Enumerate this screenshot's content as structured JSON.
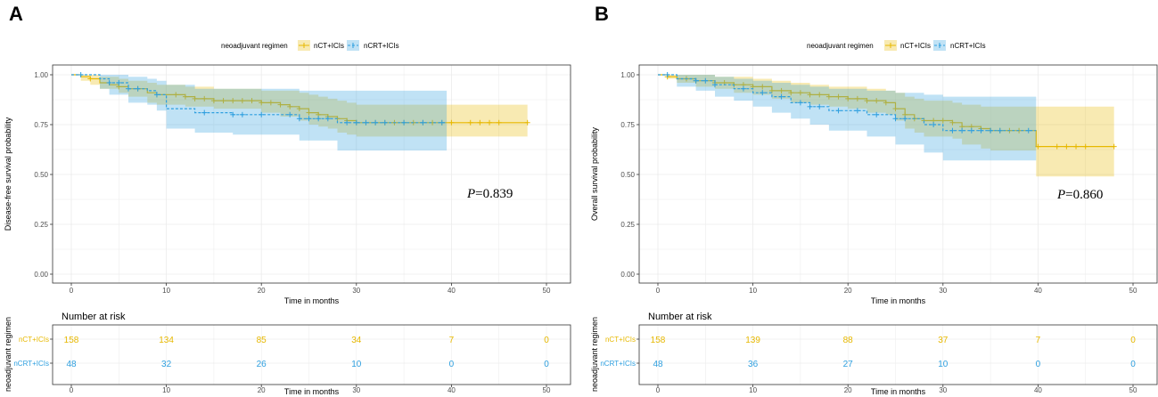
{
  "colors": {
    "nct": "#e7b800",
    "ncrt": "#2e9fdf",
    "grid": "#ebebeb",
    "frame": "#333333"
  },
  "chart_data": [
    {
      "type": "line",
      "panel_label": "A",
      "legend_title": "neoadjuvant regimen",
      "legend_items": [
        "nCT+ICIs",
        "nCRT+ICIs"
      ],
      "ylabel": "Disease-free survival probability",
      "xlabel": "Time in months",
      "xlim": [
        0,
        50
      ],
      "ylim": [
        0,
        1
      ],
      "x_ticks": [
        "0",
        "10",
        "20",
        "30",
        "40",
        "50"
      ],
      "y_ticks": [
        "0.00",
        "0.25",
        "0.50",
        "0.75",
        "1.00"
      ],
      "p_symbol": "P",
      "p_value": "=0.839",
      "series": [
        {
          "name": "nCT+ICIs",
          "steps": [
            [
              0,
              1.0
            ],
            [
              1,
              0.99
            ],
            [
              2,
              0.98
            ],
            [
              3,
              0.96
            ],
            [
              4,
              0.95
            ],
            [
              5,
              0.94
            ],
            [
              6,
              0.93
            ],
            [
              8,
              0.91
            ],
            [
              9,
              0.9
            ],
            [
              12,
              0.89
            ],
            [
              13,
              0.88
            ],
            [
              15,
              0.87
            ],
            [
              20,
              0.86
            ],
            [
              22,
              0.85
            ],
            [
              23,
              0.84
            ],
            [
              24,
              0.83
            ],
            [
              25,
              0.81
            ],
            [
              26,
              0.8
            ],
            [
              27,
              0.79
            ],
            [
              28,
              0.78
            ],
            [
              29,
              0.77
            ],
            [
              30,
              0.76
            ],
            [
              48,
              0.76
            ]
          ],
          "ci": [
            [
              0,
              1,
              1
            ],
            [
              1,
              1,
              0.97
            ],
            [
              2,
              1,
              0.95
            ],
            [
              3,
              0.99,
              0.93
            ],
            [
              5,
              0.98,
              0.91
            ],
            [
              6,
              0.97,
              0.89
            ],
            [
              8,
              0.96,
              0.86
            ],
            [
              9,
              0.95,
              0.85
            ],
            [
              12,
              0.94,
              0.84
            ],
            [
              15,
              0.93,
              0.83
            ],
            [
              20,
              0.92,
              0.81
            ],
            [
              22,
              0.92,
              0.79
            ],
            [
              24,
              0.91,
              0.77
            ],
            [
              25,
              0.9,
              0.75
            ],
            [
              26,
              0.89,
              0.74
            ],
            [
              27,
              0.88,
              0.73
            ],
            [
              28,
              0.87,
              0.71
            ],
            [
              29,
              0.86,
              0.7
            ],
            [
              30,
              0.85,
              0.69
            ],
            [
              39,
              0.85,
              0.69
            ],
            [
              40,
              0.85,
              0.69
            ],
            [
              48,
              0.85,
              0.69
            ]
          ],
          "censor": [
            2,
            5,
            7,
            9,
            11,
            12,
            13,
            14,
            15,
            16,
            17,
            18,
            19,
            20,
            21,
            22,
            23,
            24,
            25,
            26,
            27,
            28,
            29,
            30,
            31,
            32,
            33,
            34,
            35,
            36,
            37,
            38,
            39,
            40,
            42,
            43,
            44,
            45,
            48
          ]
        },
        {
          "name": "nCRT+ICIs",
          "steps": [
            [
              0,
              1.0
            ],
            [
              3,
              0.98
            ],
            [
              4,
              0.96
            ],
            [
              6,
              0.93
            ],
            [
              8,
              0.92
            ],
            [
              9,
              0.9
            ],
            [
              10,
              0.83
            ],
            [
              13,
              0.81
            ],
            [
              17,
              0.8
            ],
            [
              24,
              0.78
            ],
            [
              28,
              0.76
            ],
            [
              39.5,
              0.76
            ]
          ],
          "ci": [
            [
              0,
              1,
              1
            ],
            [
              3,
              1,
              0.93
            ],
            [
              4,
              1,
              0.9
            ],
            [
              6,
              0.99,
              0.86
            ],
            [
              8,
              0.98,
              0.85
            ],
            [
              9,
              0.97,
              0.82
            ],
            [
              10,
              0.95,
              0.73
            ],
            [
              13,
              0.93,
              0.71
            ],
            [
              17,
              0.93,
              0.7
            ],
            [
              24,
              0.92,
              0.67
            ],
            [
              28,
              0.92,
              0.62
            ],
            [
              39.5,
              0.92,
              0.62
            ]
          ],
          "censor": [
            1,
            4,
            5,
            6,
            7,
            9,
            14,
            17,
            18,
            20,
            23,
            24,
            25,
            26,
            27,
            29,
            30,
            31,
            32,
            33,
            35,
            37,
            39
          ]
        }
      ],
      "risk_table": {
        "title": "Number at risk",
        "y_title": "neoadjuvant regimen",
        "rows": [
          {
            "label": "nCT+ICIs",
            "values": [
              "158",
              "134",
              "85",
              "34",
              "7",
              "0"
            ]
          },
          {
            "label": "nCRT+ICIs",
            "values": [
              "48",
              "32",
              "26",
              "10",
              "0",
              "0"
            ]
          }
        ],
        "x_ticks": [
          "0",
          "10",
          "20",
          "30",
          "40",
          "50"
        ],
        "xlabel": "Time in months"
      }
    },
    {
      "type": "line",
      "panel_label": "B",
      "legend_title": "neoadjuvant regimen",
      "legend_items": [
        "nCT+ICIs",
        "nCRT+ICIs"
      ],
      "ylabel": "Overall survival probability",
      "xlabel": "Time in months",
      "xlim": [
        0,
        50
      ],
      "ylim": [
        0,
        1
      ],
      "x_ticks": [
        "0",
        "10",
        "20",
        "30",
        "40",
        "50"
      ],
      "y_ticks": [
        "0.00",
        "0.25",
        "0.50",
        "0.75",
        "1.00"
      ],
      "p_symbol": "P",
      "p_value": "=0.860",
      "series": [
        {
          "name": "nCT+ICIs",
          "steps": [
            [
              0,
              1.0
            ],
            [
              1,
              0.99
            ],
            [
              2,
              0.98
            ],
            [
              4,
              0.97
            ],
            [
              6,
              0.96
            ],
            [
              8,
              0.95
            ],
            [
              10,
              0.94
            ],
            [
              12,
              0.92
            ],
            [
              14,
              0.91
            ],
            [
              16,
              0.9
            ],
            [
              18,
              0.89
            ],
            [
              20,
              0.88
            ],
            [
              22,
              0.87
            ],
            [
              24,
              0.86
            ],
            [
              25,
              0.83
            ],
            [
              26,
              0.8
            ],
            [
              27,
              0.78
            ],
            [
              28,
              0.77
            ],
            [
              31,
              0.76
            ],
            [
              32,
              0.74
            ],
            [
              34,
              0.73
            ],
            [
              35,
              0.72
            ],
            [
              39.8,
              0.64
            ],
            [
              48,
              0.64
            ]
          ],
          "ci": [
            [
              0,
              1,
              1
            ],
            [
              1,
              1,
              0.98
            ],
            [
              2,
              1,
              0.96
            ],
            [
              4,
              1,
              0.94
            ],
            [
              6,
              0.99,
              0.93
            ],
            [
              8,
              0.99,
              0.91
            ],
            [
              10,
              0.98,
              0.9
            ],
            [
              12,
              0.97,
              0.88
            ],
            [
              14,
              0.96,
              0.86
            ],
            [
              16,
              0.95,
              0.85
            ],
            [
              18,
              0.94,
              0.84
            ],
            [
              20,
              0.94,
              0.83
            ],
            [
              22,
              0.93,
              0.81
            ],
            [
              24,
              0.92,
              0.8
            ],
            [
              25,
              0.91,
              0.77
            ],
            [
              26,
              0.89,
              0.73
            ],
            [
              27,
              0.88,
              0.71
            ],
            [
              28,
              0.87,
              0.69
            ],
            [
              31,
              0.86,
              0.68
            ],
            [
              32,
              0.85,
              0.65
            ],
            [
              34,
              0.84,
              0.63
            ],
            [
              35,
              0.84,
              0.62
            ],
            [
              39.8,
              0.84,
              0.49
            ],
            [
              48,
              0.84,
              0.49
            ]
          ],
          "censor": [
            1,
            3,
            4,
            6,
            7,
            8,
            9,
            10,
            11,
            12,
            13,
            14,
            15,
            16,
            17,
            18,
            19,
            20,
            21,
            22,
            23,
            24,
            25,
            26,
            27,
            28,
            29,
            30,
            31,
            32,
            33,
            34,
            35,
            36,
            37,
            38,
            40,
            42,
            43,
            44,
            45,
            48
          ]
        },
        {
          "name": "nCRT+ICIs",
          "steps": [
            [
              0,
              1.0
            ],
            [
              2,
              0.98
            ],
            [
              4,
              0.97
            ],
            [
              6,
              0.95
            ],
            [
              8,
              0.93
            ],
            [
              10,
              0.91
            ],
            [
              12,
              0.89
            ],
            [
              14,
              0.86
            ],
            [
              16,
              0.84
            ],
            [
              18,
              0.82
            ],
            [
              22,
              0.8
            ],
            [
              25,
              0.78
            ],
            [
              28,
              0.75
            ],
            [
              30,
              0.72
            ],
            [
              39.8,
              0.72
            ]
          ],
          "ci": [
            [
              0,
              1,
              1
            ],
            [
              2,
              1,
              0.94
            ],
            [
              4,
              1,
              0.92
            ],
            [
              6,
              0.99,
              0.89
            ],
            [
              8,
              0.98,
              0.87
            ],
            [
              10,
              0.97,
              0.84
            ],
            [
              12,
              0.96,
              0.81
            ],
            [
              14,
              0.95,
              0.78
            ],
            [
              16,
              0.94,
              0.75
            ],
            [
              18,
              0.93,
              0.72
            ],
            [
              22,
              0.92,
              0.69
            ],
            [
              25,
              0.91,
              0.65
            ],
            [
              28,
              0.9,
              0.61
            ],
            [
              30,
              0.89,
              0.57
            ],
            [
              39.8,
              0.89,
              0.57
            ]
          ],
          "censor": [
            1,
            4,
            5,
            6,
            9,
            11,
            13,
            15,
            16,
            17,
            19,
            21,
            23,
            25,
            26,
            29,
            31,
            32,
            33,
            34,
            35,
            36,
            39
          ]
        }
      ],
      "risk_table": {
        "title": "Number at risk",
        "y_title": "neoadjuvant regimen",
        "rows": [
          {
            "label": "nCT+ICIs",
            "values": [
              "158",
              "139",
              "88",
              "37",
              "7",
              "0"
            ]
          },
          {
            "label": "nCRT+ICIs",
            "values": [
              "48",
              "36",
              "27",
              "10",
              "0",
              "0"
            ]
          }
        ],
        "x_ticks": [
          "0",
          "10",
          "20",
          "30",
          "40",
          "50"
        ],
        "xlabel": "Time in months"
      }
    }
  ]
}
